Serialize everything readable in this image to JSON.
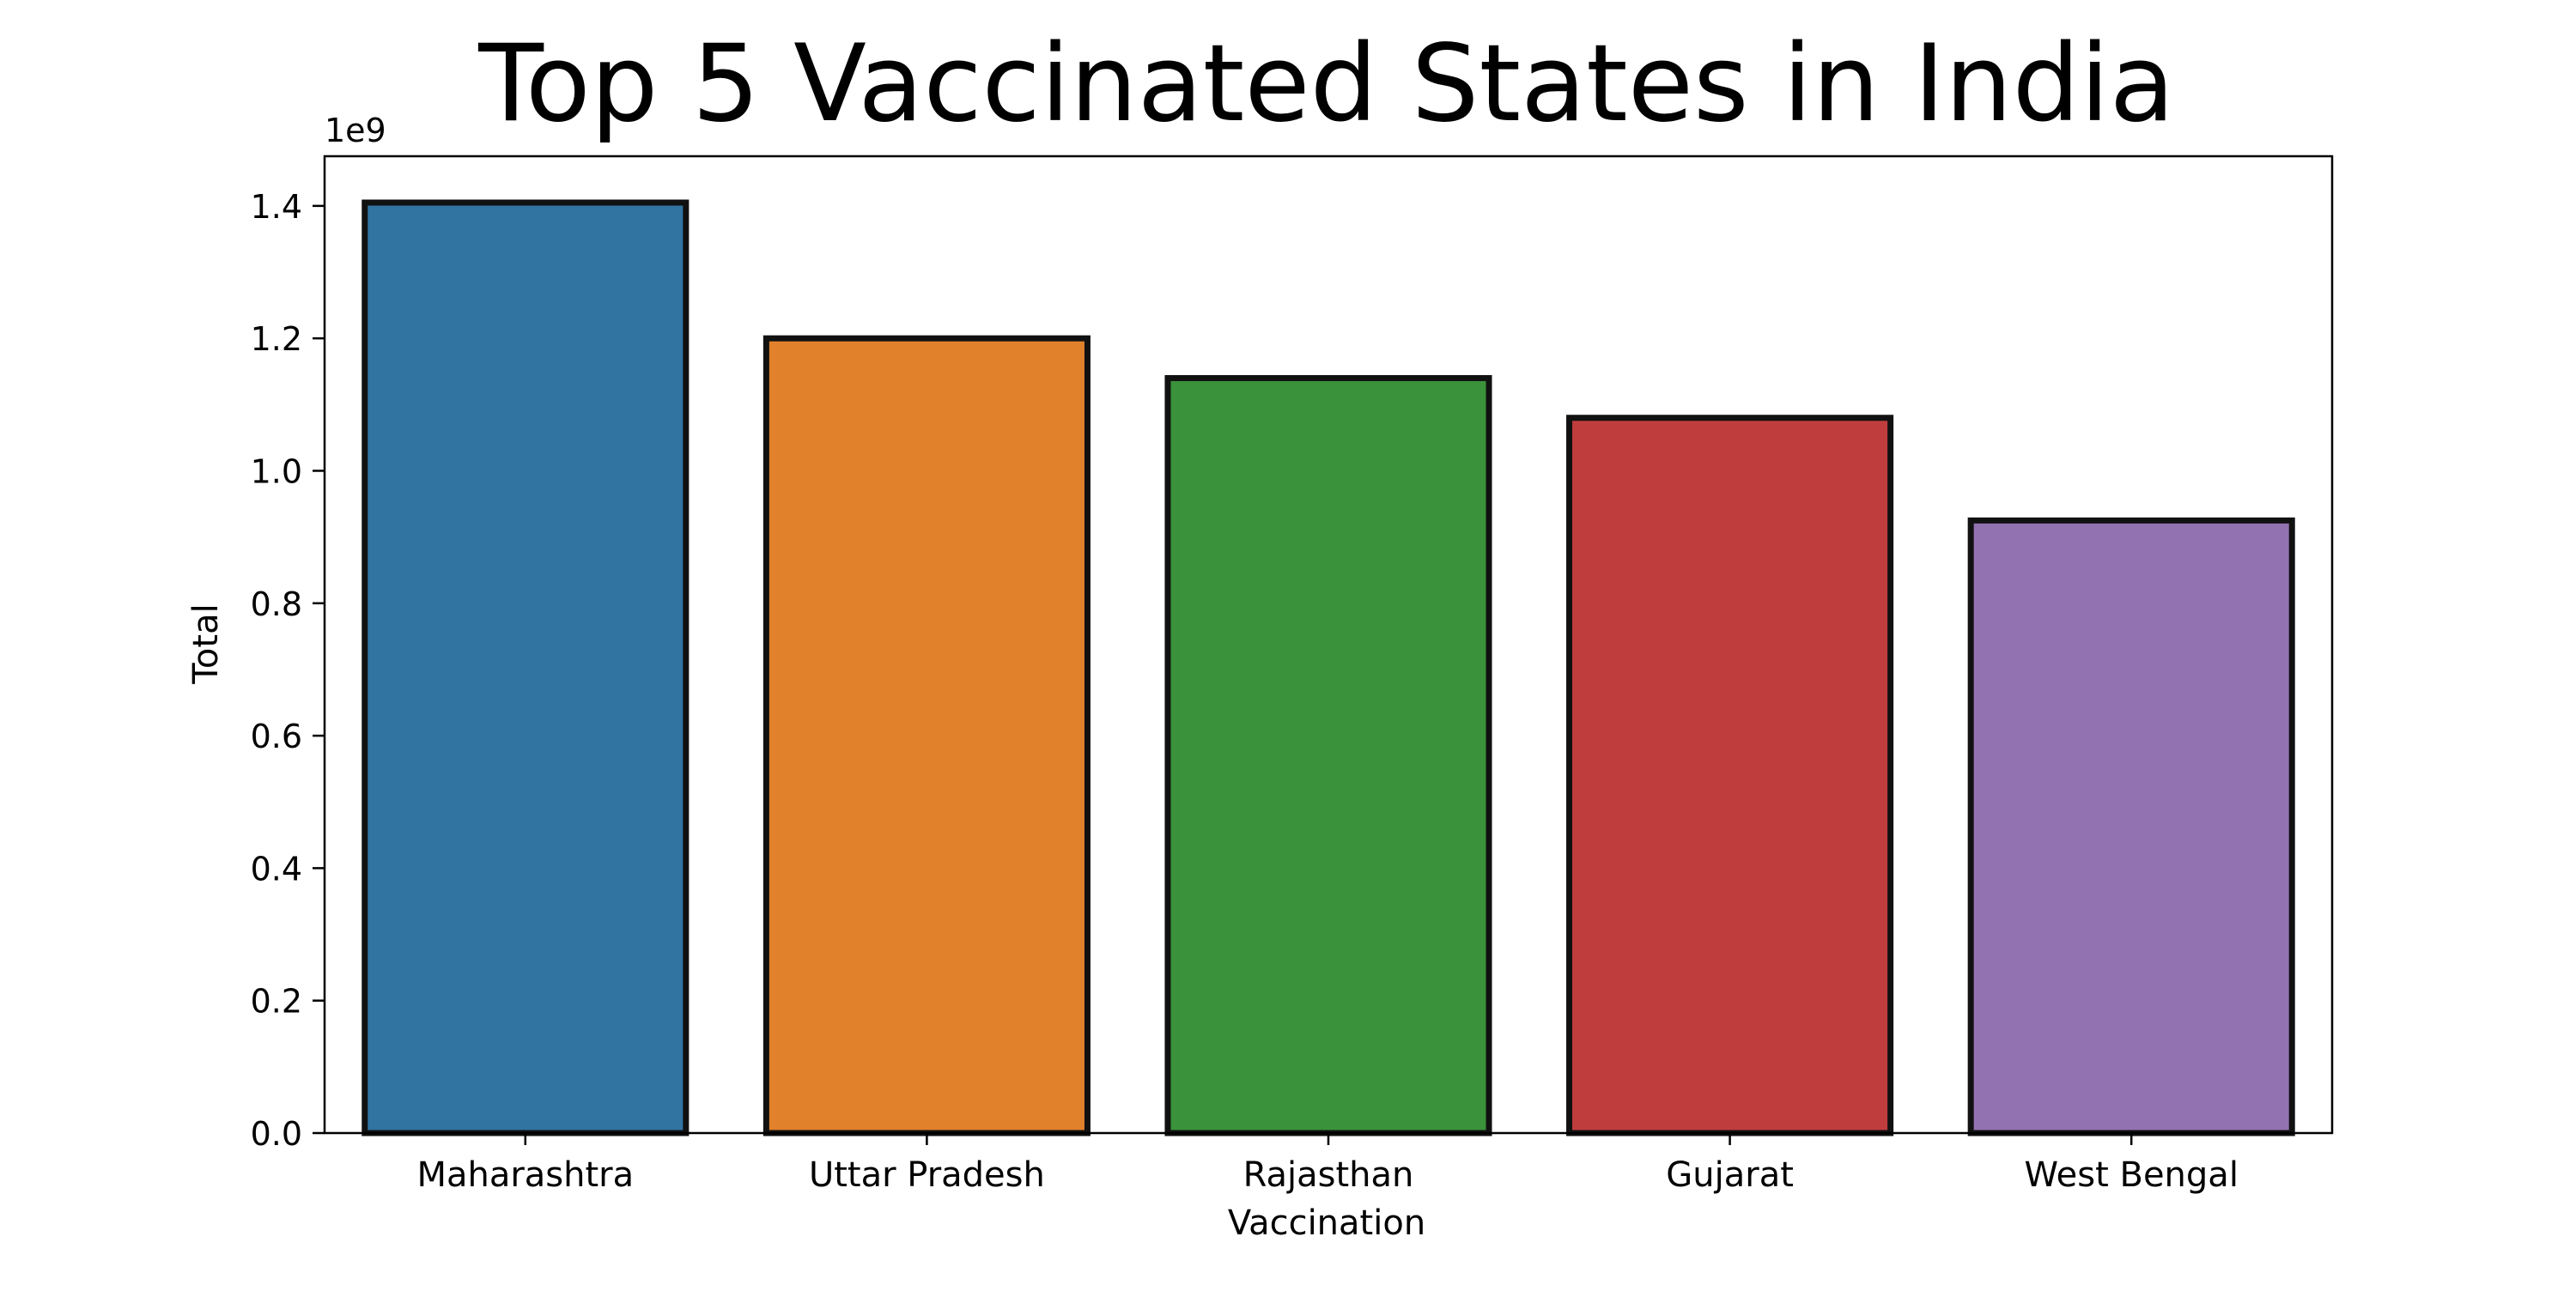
{
  "chart_data": {
    "type": "bar",
    "title": "Top 5 Vaccinated States in India",
    "xlabel": "Vaccination",
    "ylabel": "Total",
    "offset_label": "1e9",
    "categories": [
      "Maharashtra",
      "Uttar Pradesh",
      "Rajasthan",
      "Gujarat",
      "West Bengal"
    ],
    "values": [
      1.405,
      1.2,
      1.14,
      1.08,
      0.925
    ],
    "value_scale": 1000000000.0,
    "ylim": [
      0,
      1.475
    ],
    "yticks": [
      0.0,
      0.2,
      0.4,
      0.6,
      0.8,
      1.0,
      1.2,
      1.4
    ],
    "ytick_labels": [
      "0.0",
      "0.2",
      "0.4",
      "0.6",
      "0.8",
      "1.0",
      "1.2",
      "1.4"
    ],
    "colors": [
      "#3274a1",
      "#e1812c",
      "#3a923a",
      "#c03d3e",
      "#9372b2"
    ],
    "edge_color": "#111111",
    "grid": false,
    "legend": "none"
  }
}
